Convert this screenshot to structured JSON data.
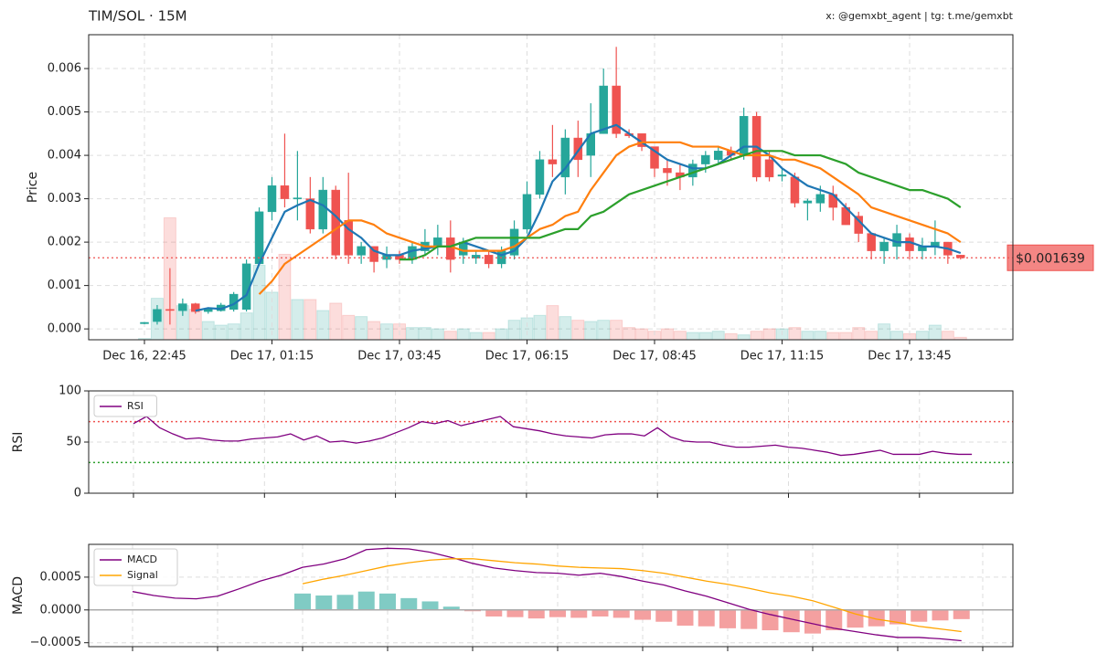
{
  "header": {
    "title": "TIM/SOL · 15M",
    "credit": "x: @gemxbt_agent | tg: t.me/gemxbt"
  },
  "chart_data": [
    {
      "type": "candlestick",
      "ylabel": "Price",
      "categories": [
        "Dec 16, 22:45",
        null,
        null,
        null,
        null,
        null,
        null,
        null,
        null,
        null,
        "Dec 17, 01:15",
        null,
        null,
        null,
        null,
        null,
        null,
        null,
        null,
        null,
        "Dec 17, 03:45",
        null,
        null,
        null,
        null,
        null,
        null,
        null,
        null,
        null,
        "Dec 17, 06:15",
        null,
        null,
        null,
        null,
        null,
        null,
        null,
        null,
        null,
        "Dec 17, 08:45",
        null,
        null,
        null,
        null,
        null,
        null,
        null,
        null,
        null,
        "Dec 17, 11:15",
        null,
        null,
        null,
        null,
        null,
        null,
        null,
        null,
        null,
        "Dec 17, 13:45",
        null,
        null,
        null,
        null
      ],
      "open": [
        0.00012,
        0.00017,
        0.00045,
        0.00042,
        0.00058,
        0.0004,
        0.00042,
        0.00045,
        0.00045,
        0.0015,
        0.0027,
        0.0033,
        0.003,
        0.003,
        0.0023,
        0.0032,
        0.0025,
        0.0017,
        0.0019,
        0.0016,
        0.0017,
        0.0016,
        0.0018,
        0.0019,
        0.0021,
        0.0017,
        0.00163,
        0.0017,
        0.0015,
        0.0017,
        0.0023,
        0.0031,
        0.0039,
        0.0035,
        0.0044,
        0.004,
        0.0045,
        0.0056,
        0.0045,
        0.0045,
        0.0042,
        0.0037,
        0.0036,
        0.0035,
        0.0038,
        0.0039,
        0.0041,
        0.004,
        0.0049,
        0.0039,
        0.00352,
        0.0035,
        0.0029,
        0.0029,
        0.0031,
        0.0028,
        0.0026,
        0.0022,
        0.0018,
        0.0019,
        0.0021,
        0.0018,
        0.0019,
        0.002,
        0.0017
      ],
      "high": [
        0.00016,
        0.00055,
        0.0014,
        0.0007,
        0.0006,
        0.0005,
        0.0006,
        0.00085,
        0.0016,
        0.0028,
        0.0035,
        0.0045,
        0.0041,
        0.0035,
        0.0035,
        0.0033,
        0.0036,
        0.002,
        0.0019,
        0.0019,
        0.0018,
        0.002,
        0.0023,
        0.0024,
        0.0025,
        0.0021,
        0.0018,
        0.0018,
        0.0019,
        0.0025,
        0.0034,
        0.0041,
        0.0047,
        0.0046,
        0.0048,
        0.0052,
        0.006,
        0.0065,
        0.0046,
        0.0045,
        0.0042,
        0.0039,
        0.0038,
        0.0039,
        0.0041,
        0.0042,
        0.0042,
        0.0051,
        0.005,
        0.0041,
        0.0037,
        0.0036,
        0.003,
        0.0033,
        0.0033,
        0.0029,
        0.0027,
        0.0022,
        0.0021,
        0.0024,
        0.0022,
        0.0021,
        0.0025,
        0.002,
        0.0017
      ],
      "low": [
        0.00011,
        0.0001,
        0.0001,
        0.0003,
        0.00035,
        0.00035,
        0.0004,
        0.0004,
        0.0004,
        0.0015,
        0.0025,
        0.0028,
        0.0025,
        0.0022,
        0.0022,
        0.0016,
        0.0015,
        0.0015,
        0.0013,
        0.0014,
        0.0015,
        0.0015,
        0.0017,
        0.0017,
        0.0013,
        0.0015,
        0.0015,
        0.0014,
        0.0014,
        0.0016,
        0.0022,
        0.003,
        0.0035,
        0.0031,
        0.0035,
        0.0035,
        0.0045,
        0.0044,
        0.0044,
        0.0041,
        0.0035,
        0.0033,
        0.0032,
        0.0033,
        0.0036,
        0.0038,
        0.0039,
        0.0039,
        0.0034,
        0.0034,
        0.0034,
        0.0028,
        0.0025,
        0.0027,
        0.0025,
        0.0024,
        0.002,
        0.0016,
        0.0015,
        0.0016,
        0.0016,
        0.0016,
        0.0017,
        0.0015,
        0.0016
      ],
      "close": [
        0.00015,
        0.00045,
        0.00043,
        0.00058,
        0.0004,
        0.00045,
        0.00055,
        0.0008,
        0.0015,
        0.0027,
        0.0033,
        0.003,
        0.00302,
        0.0023,
        0.0032,
        0.0017,
        0.0017,
        0.0019,
        0.00155,
        0.0017,
        0.0016,
        0.0019,
        0.002,
        0.0021,
        0.0016,
        0.002,
        0.0017,
        0.0015,
        0.0018,
        0.0023,
        0.0031,
        0.0039,
        0.0038,
        0.0044,
        0.0039,
        0.0045,
        0.0056,
        0.0045,
        0.00445,
        0.0042,
        0.0037,
        0.0036,
        0.0035,
        0.0038,
        0.004,
        0.0041,
        0.004,
        0.0049,
        0.0035,
        0.0035,
        0.00355,
        0.0029,
        0.00295,
        0.0031,
        0.0028,
        0.0024,
        0.0022,
        0.0018,
        0.002,
        0.0022,
        0.0018,
        0.0019,
        0.002,
        0.0017,
        0.001639
      ],
      "up_color": "#26a69a",
      "down_color": "#ef5350",
      "volume": [
        1,
        34,
        100,
        28,
        25,
        15,
        12,
        13,
        22,
        61,
        39,
        70,
        33,
        33,
        24,
        30,
        20,
        19,
        15,
        13,
        13,
        10,
        10,
        9,
        7,
        9,
        6,
        6,
        9,
        16,
        18,
        20,
        28,
        19,
        16,
        15,
        16,
        16,
        10,
        9,
        7,
        9,
        7,
        6,
        6,
        7,
        5,
        4,
        7,
        9,
        9,
        10,
        7,
        7,
        6,
        6,
        10,
        7,
        13,
        7,
        5,
        7,
        12,
        7,
        2
      ],
      "y2lim": [
        0,
        250
      ],
      "series": [
        {
          "color": "#1f77b4",
          "values": [
            null,
            null,
            null,
            null,
            0.00042,
            0.00048,
            0.00046,
            0.00057,
            0.00078,
            0.0015,
            0.0021,
            0.0027,
            0.00285,
            0.00297,
            0.00285,
            0.0026,
            0.0023,
            0.0021,
            0.0018,
            0.0017,
            0.0017,
            0.0018,
            0.00185,
            0.0019,
            0.0019,
            0.002,
            0.0019,
            0.0018,
            0.0017,
            0.0018,
            0.0021,
            0.0027,
            0.0034,
            0.0037,
            0.0041,
            0.0045,
            0.0046,
            0.0047,
            0.0045,
            0.0043,
            0.0041,
            0.0039,
            0.0038,
            0.0037,
            0.0037,
            0.0038,
            0.004,
            0.0042,
            0.0042,
            0.004,
            0.0037,
            0.0035,
            0.0033,
            0.0032,
            0.0031,
            0.0028,
            0.0025,
            0.0022,
            0.0021,
            0.002,
            0.002,
            0.0019,
            0.0019,
            0.00185,
            0.00175
          ]
        },
        {
          "color": "#ff7f0e",
          "values": [
            null,
            null,
            null,
            null,
            null,
            null,
            null,
            null,
            null,
            0.0008,
            0.0011,
            0.0015,
            0.0017,
            0.0019,
            0.0021,
            0.0023,
            0.0025,
            0.0025,
            0.0024,
            0.0022,
            0.0021,
            0.002,
            0.0019,
            0.0019,
            0.0019,
            0.0018,
            0.0018,
            0.0018,
            0.0018,
            0.0019,
            0.0021,
            0.0023,
            0.0024,
            0.0026,
            0.0027,
            0.0032,
            0.0036,
            0.004,
            0.0042,
            0.0043,
            0.0043,
            0.0043,
            0.0043,
            0.0042,
            0.0042,
            0.0042,
            0.0041,
            0.004,
            0.004,
            0.004,
            0.0039,
            0.0039,
            0.0038,
            0.0037,
            0.0035,
            0.0033,
            0.0031,
            0.0028,
            0.0027,
            0.0026,
            0.0025,
            0.0024,
            0.0023,
            0.0022,
            0.002
          ]
        },
        {
          "color": "#2ca02c",
          "values": [
            null,
            null,
            null,
            null,
            null,
            null,
            null,
            null,
            null,
            null,
            null,
            null,
            null,
            null,
            null,
            null,
            null,
            null,
            null,
            null,
            0.0016,
            0.0016,
            0.0017,
            0.0019,
            0.0019,
            0.002,
            0.0021,
            0.0021,
            0.0021,
            0.0021,
            0.0021,
            0.0021,
            0.0022,
            0.0023,
            0.0023,
            0.0026,
            0.0027,
            0.0029,
            0.0031,
            0.0032,
            0.0033,
            0.0034,
            0.0035,
            0.0036,
            0.0037,
            0.0038,
            0.0039,
            0.004,
            0.0041,
            0.0041,
            0.0041,
            0.004,
            0.004,
            0.004,
            0.0039,
            0.0038,
            0.0036,
            0.0035,
            0.0034,
            0.0033,
            0.0032,
            0.0032,
            0.0031,
            0.003,
            0.0028
          ]
        }
      ],
      "last_price": {
        "value": 0.001639,
        "label": "$0.001639",
        "color": "#ef5350"
      },
      "ylim": [
        -0.00025,
        0.00678
      ],
      "yticks": [
        {
          "value": 0,
          "label": "0.000"
        },
        {
          "value": 0.001,
          "label": "0.001"
        },
        {
          "value": 0.002,
          "label": "0.002"
        },
        {
          "value": 0.003,
          "label": "0.003"
        },
        {
          "value": 0.004,
          "label": "0.004"
        },
        {
          "value": 0.005,
          "label": "0.005"
        },
        {
          "value": 0.006,
          "label": "0.006"
        }
      ],
      "grid": true
    },
    {
      "type": "line",
      "ylabel": "RSI",
      "series": [
        {
          "name": "RSI",
          "color": "#800080",
          "values": [
            68,
            75,
            64,
            58,
            53,
            54,
            52,
            51,
            51,
            53,
            54,
            55,
            58,
            52,
            56,
            50,
            51,
            49,
            51,
            54,
            59,
            64,
            70,
            68,
            71,
            66,
            69,
            72,
            75,
            65,
            63,
            61,
            58,
            56,
            55,
            54,
            57,
            58,
            58,
            56,
            64,
            55,
            51,
            50,
            50,
            47,
            45,
            45,
            46,
            47,
            45,
            44,
            42,
            40,
            37,
            38,
            40,
            42,
            38,
            38,
            38,
            41,
            39,
            38,
            38
          ]
        }
      ],
      "hlines": [
        {
          "value": 70,
          "color": "#ef5350"
        },
        {
          "value": 30,
          "color": "#2ca02c"
        }
      ],
      "xticks": [
        0,
        10,
        20,
        30,
        40,
        50,
        60
      ],
      "ylim": [
        0,
        100
      ],
      "yticks": [
        0,
        50,
        100
      ],
      "grid": true,
      "legend": "upper left"
    },
    {
      "type": "combo",
      "ylabel": "MACD",
      "series": [
        {
          "name": "MACD",
          "color": "#800080",
          "values": [
            0.00028,
            0.00022,
            0.00018,
            0.00017,
            0.00021,
            0.00032,
            0.00044,
            0.00053,
            0.00065,
            0.0007,
            0.00078,
            0.00092,
            0.00094,
            0.00093,
            0.00088,
            0.0008,
            0.00071,
            0.00064,
            0.0006,
            0.00057,
            0.00056,
            0.00053,
            0.00056,
            0.00051,
            0.00044,
            0.00038,
            0.00029,
            0.00021,
            0.00011,
            1e-05,
            -7e-05,
            -0.00014,
            -0.00021,
            -0.00028,
            -0.00033,
            -0.00038,
            -0.00042,
            -0.00042,
            -0.00044,
            -0.00047
          ]
        },
        {
          "name": "Signal",
          "color": "#ffa500",
          "values": [
            null,
            null,
            null,
            null,
            null,
            null,
            null,
            null,
            0.0004,
            0.00047,
            0.00053,
            0.0006,
            0.00067,
            0.00072,
            0.00076,
            0.00078,
            0.00078,
            0.00075,
            0.00072,
            0.0007,
            0.00067,
            0.00065,
            0.00064,
            0.00063,
            0.0006,
            0.00056,
            0.0005,
            0.00044,
            0.00039,
            0.00033,
            0.00026,
            0.00021,
            0.00014,
            4e-05,
            -6e-05,
            -0.00014,
            -0.00019,
            -0.00025,
            -0.00029,
            -0.00033
          ]
        }
      ],
      "histogram": [
        null,
        null,
        null,
        null,
        null,
        null,
        null,
        null,
        0.00025,
        0.00022,
        0.00023,
        0.00028,
        0.00025,
        0.00018,
        0.00013,
        5e-05,
        -2e-05,
        -0.0001,
        -0.00011,
        -0.00013,
        -0.00011,
        -0.00012,
        -0.0001,
        -0.00012,
        -0.00015,
        -0.00018,
        -0.00024,
        -0.00025,
        -0.00028,
        -0.00029,
        -0.00031,
        -0.00034,
        -0.00036,
        -0.00031,
        -0.00027,
        -0.00025,
        -0.00022,
        -0.00018,
        -0.00016,
        -0.00014
      ],
      "histogram_colors": [
        "#80cbc4",
        "#f4a0a0"
      ],
      "xticks": [
        0,
        4,
        8,
        12,
        16,
        20,
        24,
        28,
        32,
        36,
        40
      ],
      "ylim": [
        -0.00056,
        0.001
      ],
      "yticks": [
        {
          "value": -0.0005,
          "label": "−0.0005"
        },
        {
          "value": 0,
          "label": "0.0000"
        },
        {
          "value": 0.0005,
          "label": "0.0005"
        }
      ],
      "grid": true,
      "legend": "upper left"
    }
  ]
}
